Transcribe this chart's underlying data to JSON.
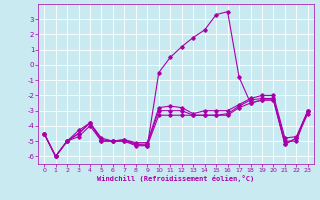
{
  "xlabel": "Windchill (Refroidissement éolien,°C)",
  "background_color": "#c8eaf0",
  "grid_color": "#aacccc",
  "line_color": "#aa00aa",
  "xlim": [
    -0.5,
    23.5
  ],
  "ylim": [
    -6.5,
    4.0
  ],
  "xticks": [
    0,
    1,
    2,
    3,
    4,
    5,
    6,
    7,
    8,
    9,
    10,
    11,
    12,
    13,
    14,
    15,
    16,
    17,
    18,
    19,
    20,
    21,
    22,
    23
  ],
  "yticks": [
    -6,
    -5,
    -4,
    -3,
    -2,
    -1,
    0,
    1,
    2,
    3
  ],
  "series1_x": [
    0,
    1,
    2,
    3,
    4,
    5,
    6,
    7,
    8,
    9,
    10,
    11,
    12,
    13,
    14,
    15,
    16,
    17,
    18,
    19,
    20,
    21,
    22,
    23
  ],
  "series1_y": [
    -4.5,
    -6.0,
    -5.0,
    -4.7,
    -4.0,
    -5.0,
    -5.0,
    -5.0,
    -5.3,
    -5.3,
    -3.3,
    -3.3,
    -3.3,
    -3.3,
    -3.3,
    -3.3,
    -3.3,
    -2.8,
    -2.5,
    -2.3,
    -2.3,
    -5.2,
    -4.8,
    -3.2
  ],
  "series2_x": [
    0,
    1,
    2,
    3,
    4,
    5,
    6,
    7,
    8,
    9,
    10,
    11,
    12,
    13,
    14,
    15,
    16,
    17,
    18,
    19,
    20,
    21,
    22,
    23
  ],
  "series2_y": [
    -4.5,
    -6.0,
    -5.0,
    -4.5,
    -3.8,
    -4.9,
    -5.0,
    -4.9,
    -5.2,
    -5.2,
    -3.0,
    -3.0,
    -3.0,
    -3.3,
    -3.3,
    -3.3,
    -3.2,
    -2.7,
    -2.3,
    -2.2,
    -2.2,
    -5.0,
    -5.0,
    -3.0
  ],
  "series3_x": [
    0,
    1,
    2,
    3,
    4,
    5,
    6,
    7,
    8,
    9,
    10,
    11,
    12,
    13,
    14,
    15,
    16,
    17,
    18,
    19,
    20,
    21,
    22,
    23
  ],
  "series3_y": [
    -4.5,
    -6.0,
    -5.0,
    -4.3,
    -3.8,
    -4.8,
    -5.0,
    -4.9,
    -5.1,
    -5.1,
    -2.8,
    -2.7,
    -2.8,
    -3.2,
    -3.0,
    -3.0,
    -3.0,
    -2.6,
    -2.2,
    -2.0,
    -2.0,
    -4.8,
    -4.7,
    -3.0
  ],
  "series4_x": [
    0,
    1,
    2,
    3,
    4,
    5,
    6,
    7,
    8,
    9,
    10,
    11,
    12,
    13,
    14,
    15,
    16,
    17,
    18,
    19,
    20,
    21,
    22,
    23
  ],
  "series4_y": [
    -4.5,
    -6.0,
    -5.0,
    -4.5,
    -3.8,
    -5.0,
    -5.0,
    -5.0,
    -5.2,
    -5.3,
    -0.5,
    0.5,
    1.2,
    1.8,
    2.3,
    3.3,
    3.5,
    -0.8,
    -2.5,
    -2.3,
    -2.3,
    -5.2,
    -4.8,
    -3.0
  ]
}
